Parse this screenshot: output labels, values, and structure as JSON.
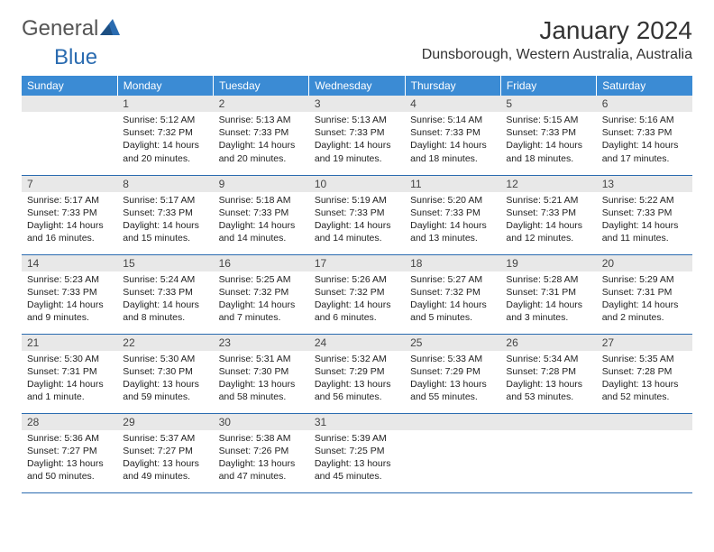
{
  "logo": {
    "text1": "General",
    "text2": "Blue"
  },
  "title": "January 2024",
  "location": "Dunsborough, Western Australia, Australia",
  "colors": {
    "header_bg": "#3b8bd4",
    "header_text": "#ffffff",
    "daynum_bg": "#e8e8e8",
    "row_border": "#2a6bb0",
    "logo_accent": "#2a6bb0"
  },
  "day_headers": [
    "Sunday",
    "Monday",
    "Tuesday",
    "Wednesday",
    "Thursday",
    "Friday",
    "Saturday"
  ],
  "weeks": [
    [
      null,
      {
        "n": "1",
        "sr": "Sunrise: 5:12 AM",
        "ss": "Sunset: 7:32 PM",
        "dl": "Daylight: 14 hours and 20 minutes."
      },
      {
        "n": "2",
        "sr": "Sunrise: 5:13 AM",
        "ss": "Sunset: 7:33 PM",
        "dl": "Daylight: 14 hours and 20 minutes."
      },
      {
        "n": "3",
        "sr": "Sunrise: 5:13 AM",
        "ss": "Sunset: 7:33 PM",
        "dl": "Daylight: 14 hours and 19 minutes."
      },
      {
        "n": "4",
        "sr": "Sunrise: 5:14 AM",
        "ss": "Sunset: 7:33 PM",
        "dl": "Daylight: 14 hours and 18 minutes."
      },
      {
        "n": "5",
        "sr": "Sunrise: 5:15 AM",
        "ss": "Sunset: 7:33 PM",
        "dl": "Daylight: 14 hours and 18 minutes."
      },
      {
        "n": "6",
        "sr": "Sunrise: 5:16 AM",
        "ss": "Sunset: 7:33 PM",
        "dl": "Daylight: 14 hours and 17 minutes."
      }
    ],
    [
      {
        "n": "7",
        "sr": "Sunrise: 5:17 AM",
        "ss": "Sunset: 7:33 PM",
        "dl": "Daylight: 14 hours and 16 minutes."
      },
      {
        "n": "8",
        "sr": "Sunrise: 5:17 AM",
        "ss": "Sunset: 7:33 PM",
        "dl": "Daylight: 14 hours and 15 minutes."
      },
      {
        "n": "9",
        "sr": "Sunrise: 5:18 AM",
        "ss": "Sunset: 7:33 PM",
        "dl": "Daylight: 14 hours and 14 minutes."
      },
      {
        "n": "10",
        "sr": "Sunrise: 5:19 AM",
        "ss": "Sunset: 7:33 PM",
        "dl": "Daylight: 14 hours and 14 minutes."
      },
      {
        "n": "11",
        "sr": "Sunrise: 5:20 AM",
        "ss": "Sunset: 7:33 PM",
        "dl": "Daylight: 14 hours and 13 minutes."
      },
      {
        "n": "12",
        "sr": "Sunrise: 5:21 AM",
        "ss": "Sunset: 7:33 PM",
        "dl": "Daylight: 14 hours and 12 minutes."
      },
      {
        "n": "13",
        "sr": "Sunrise: 5:22 AM",
        "ss": "Sunset: 7:33 PM",
        "dl": "Daylight: 14 hours and 11 minutes."
      }
    ],
    [
      {
        "n": "14",
        "sr": "Sunrise: 5:23 AM",
        "ss": "Sunset: 7:33 PM",
        "dl": "Daylight: 14 hours and 9 minutes."
      },
      {
        "n": "15",
        "sr": "Sunrise: 5:24 AM",
        "ss": "Sunset: 7:33 PM",
        "dl": "Daylight: 14 hours and 8 minutes."
      },
      {
        "n": "16",
        "sr": "Sunrise: 5:25 AM",
        "ss": "Sunset: 7:32 PM",
        "dl": "Daylight: 14 hours and 7 minutes."
      },
      {
        "n": "17",
        "sr": "Sunrise: 5:26 AM",
        "ss": "Sunset: 7:32 PM",
        "dl": "Daylight: 14 hours and 6 minutes."
      },
      {
        "n": "18",
        "sr": "Sunrise: 5:27 AM",
        "ss": "Sunset: 7:32 PM",
        "dl": "Daylight: 14 hours and 5 minutes."
      },
      {
        "n": "19",
        "sr": "Sunrise: 5:28 AM",
        "ss": "Sunset: 7:31 PM",
        "dl": "Daylight: 14 hours and 3 minutes."
      },
      {
        "n": "20",
        "sr": "Sunrise: 5:29 AM",
        "ss": "Sunset: 7:31 PM",
        "dl": "Daylight: 14 hours and 2 minutes."
      }
    ],
    [
      {
        "n": "21",
        "sr": "Sunrise: 5:30 AM",
        "ss": "Sunset: 7:31 PM",
        "dl": "Daylight: 14 hours and 1 minute."
      },
      {
        "n": "22",
        "sr": "Sunrise: 5:30 AM",
        "ss": "Sunset: 7:30 PM",
        "dl": "Daylight: 13 hours and 59 minutes."
      },
      {
        "n": "23",
        "sr": "Sunrise: 5:31 AM",
        "ss": "Sunset: 7:30 PM",
        "dl": "Daylight: 13 hours and 58 minutes."
      },
      {
        "n": "24",
        "sr": "Sunrise: 5:32 AM",
        "ss": "Sunset: 7:29 PM",
        "dl": "Daylight: 13 hours and 56 minutes."
      },
      {
        "n": "25",
        "sr": "Sunrise: 5:33 AM",
        "ss": "Sunset: 7:29 PM",
        "dl": "Daylight: 13 hours and 55 minutes."
      },
      {
        "n": "26",
        "sr": "Sunrise: 5:34 AM",
        "ss": "Sunset: 7:28 PM",
        "dl": "Daylight: 13 hours and 53 minutes."
      },
      {
        "n": "27",
        "sr": "Sunrise: 5:35 AM",
        "ss": "Sunset: 7:28 PM",
        "dl": "Daylight: 13 hours and 52 minutes."
      }
    ],
    [
      {
        "n": "28",
        "sr": "Sunrise: 5:36 AM",
        "ss": "Sunset: 7:27 PM",
        "dl": "Daylight: 13 hours and 50 minutes."
      },
      {
        "n": "29",
        "sr": "Sunrise: 5:37 AM",
        "ss": "Sunset: 7:27 PM",
        "dl": "Daylight: 13 hours and 49 minutes."
      },
      {
        "n": "30",
        "sr": "Sunrise: 5:38 AM",
        "ss": "Sunset: 7:26 PM",
        "dl": "Daylight: 13 hours and 47 minutes."
      },
      {
        "n": "31",
        "sr": "Sunrise: 5:39 AM",
        "ss": "Sunset: 7:25 PM",
        "dl": "Daylight: 13 hours and 45 minutes."
      },
      null,
      null,
      null
    ]
  ]
}
